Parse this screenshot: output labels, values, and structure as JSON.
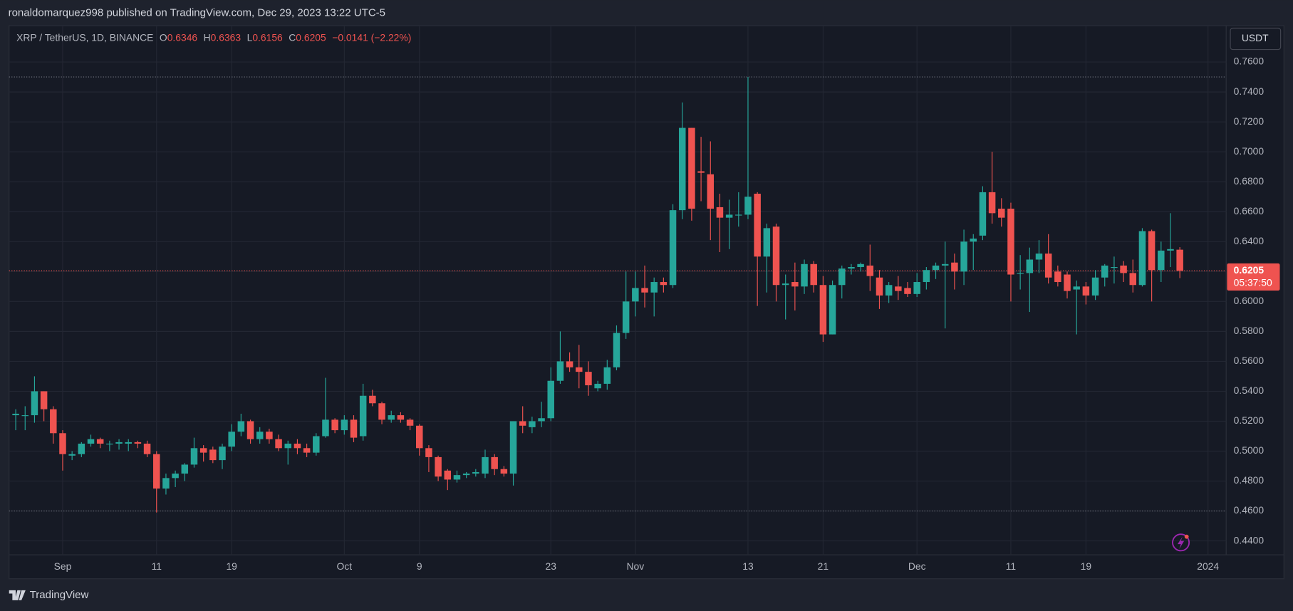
{
  "header": "ronaldomarquez998 published on TradingView.com, Dec 29, 2023 13:22 UTC-5",
  "footer": "TradingView",
  "chart_data": {
    "type": "candlestick",
    "title": "XRP / TetherUS, 1D, BINANCE",
    "ohlc_labels": [
      "O",
      "H",
      "L",
      "C"
    ],
    "change": {
      "value": -0.0141,
      "label": "−0.0141"
    },
    "change_pct": {
      "value": -2.22,
      "label": "(−2.22%)"
    },
    "currency": "USDT",
    "countdown": "05:37:50",
    "up_color": "#26a69a",
    "down_color": "#ef5350",
    "grid": true,
    "horizontal_lines": [
      0.75,
      0.46
    ],
    "xlim": [
      "2023-08-26",
      "2024-01-03"
    ],
    "ylim": [
      0.4307,
      0.7843
    ],
    "xticks": [
      {
        "value": "2023-09-01",
        "label": "Sep"
      },
      {
        "value": "2023-09-11",
        "label": "11"
      },
      {
        "value": "2023-09-19",
        "label": "19"
      },
      {
        "value": "2023-10-01",
        "label": "Oct"
      },
      {
        "value": "2023-10-09",
        "label": "9"
      },
      {
        "value": "2023-10-23",
        "label": "23"
      },
      {
        "value": "2023-11-01",
        "label": "Nov"
      },
      {
        "value": "2023-11-13",
        "label": "13"
      },
      {
        "value": "2023-11-21",
        "label": "21"
      },
      {
        "value": "2023-12-01",
        "label": "Dec"
      },
      {
        "value": "2023-12-11",
        "label": "11"
      },
      {
        "value": "2023-12-19",
        "label": "19"
      },
      {
        "value": "2024-01-01",
        "label": "2024"
      }
    ],
    "yticks": [
      {
        "value": 0.44,
        "label": "0.4400"
      },
      {
        "value": 0.46,
        "label": "0.4600"
      },
      {
        "value": 0.48,
        "label": "0.4800"
      },
      {
        "value": 0.5,
        "label": "0.5000"
      },
      {
        "value": 0.52,
        "label": "0.5200"
      },
      {
        "value": 0.54,
        "label": "0.5400"
      },
      {
        "value": 0.56,
        "label": "0.5600"
      },
      {
        "value": 0.58,
        "label": "0.5800"
      },
      {
        "value": 0.6,
        "label": "0.6000"
      },
      {
        "value": 0.62,
        "label": "0.6200"
      },
      {
        "value": 0.64,
        "label": "0.6400"
      },
      {
        "value": 0.66,
        "label": "0.6600"
      },
      {
        "value": 0.68,
        "label": "0.6800"
      },
      {
        "value": 0.7,
        "label": "0.7000"
      },
      {
        "value": 0.72,
        "label": "0.7200"
      },
      {
        "value": 0.74,
        "label": "0.7400"
      },
      {
        "value": 0.76,
        "label": "0.7600"
      }
    ],
    "x": [
      "2023-08-27",
      "2023-08-28",
      "2023-08-29",
      "2023-08-30",
      "2023-08-31",
      "2023-09-01",
      "2023-09-02",
      "2023-09-03",
      "2023-09-04",
      "2023-09-05",
      "2023-09-06",
      "2023-09-07",
      "2023-09-08",
      "2023-09-09",
      "2023-09-10",
      "2023-09-11",
      "2023-09-12",
      "2023-09-13",
      "2023-09-14",
      "2023-09-15",
      "2023-09-16",
      "2023-09-17",
      "2023-09-18",
      "2023-09-19",
      "2023-09-20",
      "2023-09-21",
      "2023-09-22",
      "2023-09-23",
      "2023-09-24",
      "2023-09-25",
      "2023-09-26",
      "2023-09-27",
      "2023-09-28",
      "2023-09-29",
      "2023-09-30",
      "2023-10-01",
      "2023-10-02",
      "2023-10-03",
      "2023-10-04",
      "2023-10-05",
      "2023-10-06",
      "2023-10-07",
      "2023-10-08",
      "2023-10-09",
      "2023-10-10",
      "2023-10-11",
      "2023-10-12",
      "2023-10-13",
      "2023-10-14",
      "2023-10-15",
      "2023-10-16",
      "2023-10-17",
      "2023-10-18",
      "2023-10-19",
      "2023-10-20",
      "2023-10-21",
      "2023-10-22",
      "2023-10-23",
      "2023-10-24",
      "2023-10-25",
      "2023-10-26",
      "2023-10-27",
      "2023-10-28",
      "2023-10-29",
      "2023-10-30",
      "2023-10-31",
      "2023-11-01",
      "2023-11-02",
      "2023-11-03",
      "2023-11-04",
      "2023-11-05",
      "2023-11-06",
      "2023-11-07",
      "2023-11-08",
      "2023-11-09",
      "2023-11-10",
      "2023-11-11",
      "2023-11-12",
      "2023-11-13",
      "2023-11-14",
      "2023-11-15",
      "2023-11-16",
      "2023-11-17",
      "2023-11-18",
      "2023-11-19",
      "2023-11-20",
      "2023-11-21",
      "2023-11-22",
      "2023-11-23",
      "2023-11-24",
      "2023-11-25",
      "2023-11-26",
      "2023-11-27",
      "2023-11-28",
      "2023-11-29",
      "2023-11-30",
      "2023-12-01",
      "2023-12-02",
      "2023-12-03",
      "2023-12-04",
      "2023-12-05",
      "2023-12-06",
      "2023-12-07",
      "2023-12-08",
      "2023-12-09",
      "2023-12-10",
      "2023-12-11",
      "2023-12-12",
      "2023-12-13",
      "2023-12-14",
      "2023-12-15",
      "2023-12-16",
      "2023-12-17",
      "2023-12-18",
      "2023-12-19",
      "2023-12-20",
      "2023-12-21",
      "2023-12-22",
      "2023-12-23",
      "2023-12-24",
      "2023-12-25",
      "2023-12-26",
      "2023-12-27",
      "2023-12-28",
      "2023-12-29"
    ],
    "open": [
      0.524,
      0.524,
      0.524,
      0.54,
      0.528,
      0.512,
      0.497,
      0.498,
      0.505,
      0.508,
      0.505,
      0.505,
      0.505,
      0.506,
      0.505,
      0.498,
      0.475,
      0.482,
      0.485,
      0.491,
      0.502,
      0.501,
      0.494,
      0.503,
      0.513,
      0.52,
      0.508,
      0.513,
      0.508,
      0.502,
      0.505,
      0.502,
      0.499,
      0.51,
      0.521,
      0.514,
      0.521,
      0.51,
      0.537,
      0.532,
      0.521,
      0.524,
      0.521,
      0.517,
      0.502,
      0.496,
      0.487,
      0.481,
      0.484,
      0.485,
      0.485,
      0.496,
      0.488,
      0.485,
      0.52,
      0.516,
      0.52,
      0.522,
      0.547,
      0.56,
      0.556,
      0.553,
      0.542,
      0.545,
      0.556,
      0.579,
      0.6,
      0.609,
      0.606,
      0.613,
      0.611,
      0.661,
      0.716,
      0.687,
      0.685,
      0.663,
      0.656,
      0.658,
      0.658,
      0.672,
      0.63,
      0.65,
      0.611,
      0.613,
      0.61,
      0.625,
      0.611,
      0.578,
      0.611,
      0.622,
      0.623,
      0.624,
      0.616,
      0.604,
      0.61,
      0.609,
      0.605,
      0.613,
      0.621,
      0.624,
      0.626,
      0.62,
      0.64,
      0.644,
      0.673,
      0.662,
      0.662,
      0.619,
      0.619,
      0.628,
      0.632,
      0.62,
      0.618,
      0.608,
      0.61,
      0.604,
      0.616,
      0.623,
      0.624,
      0.619,
      0.611,
      0.647,
      0.621,
      0.634,
      0.6346
    ],
    "high": [
      0.528,
      0.53,
      0.55,
      0.54,
      0.53,
      0.514,
      0.5,
      0.506,
      0.511,
      0.509,
      0.507,
      0.508,
      0.508,
      0.507,
      0.507,
      0.5,
      0.485,
      0.487,
      0.492,
      0.509,
      0.504,
      0.503,
      0.505,
      0.518,
      0.525,
      0.521,
      0.516,
      0.515,
      0.511,
      0.507,
      0.508,
      0.505,
      0.512,
      0.549,
      0.522,
      0.524,
      0.524,
      0.545,
      0.541,
      0.533,
      0.527,
      0.526,
      0.522,
      0.518,
      0.504,
      0.497,
      0.488,
      0.487,
      0.486,
      0.488,
      0.501,
      0.498,
      0.49,
      0.52,
      0.53,
      0.523,
      0.533,
      0.556,
      0.58,
      0.566,
      0.571,
      0.56,
      0.547,
      0.561,
      0.584,
      0.62,
      0.62,
      0.624,
      0.616,
      0.616,
      0.665,
      0.733,
      0.716,
      0.71,
      0.707,
      0.672,
      0.668,
      0.673,
      0.75,
      0.673,
      0.652,
      0.652,
      0.618,
      0.626,
      0.628,
      0.627,
      0.617,
      0.614,
      0.624,
      0.625,
      0.626,
      0.638,
      0.621,
      0.613,
      0.617,
      0.613,
      0.619,
      0.623,
      0.626,
      0.64,
      0.632,
      0.648,
      0.645,
      0.677,
      0.7,
      0.669,
      0.666,
      0.631,
      0.636,
      0.641,
      0.645,
      0.624,
      0.62,
      0.614,
      0.613,
      0.621,
      0.625,
      0.63,
      0.627,
      0.628,
      0.649,
      0.648,
      0.64,
      0.659,
      0.6363
    ],
    "low": [
      0.514,
      0.514,
      0.519,
      0.52,
      0.505,
      0.487,
      0.494,
      0.496,
      0.503,
      0.502,
      0.5,
      0.501,
      0.5,
      0.502,
      0.496,
      0.459,
      0.471,
      0.476,
      0.48,
      0.489,
      0.493,
      0.492,
      0.488,
      0.5,
      0.51,
      0.505,
      0.505,
      0.505,
      0.5,
      0.491,
      0.498,
      0.496,
      0.497,
      0.509,
      0.512,
      0.511,
      0.506,
      0.507,
      0.53,
      0.518,
      0.519,
      0.519,
      0.514,
      0.497,
      0.486,
      0.48,
      0.474,
      0.479,
      0.482,
      0.483,
      0.482,
      0.484,
      0.483,
      0.477,
      0.512,
      0.512,
      0.516,
      0.52,
      0.545,
      0.553,
      0.542,
      0.537,
      0.54,
      0.541,
      0.554,
      0.575,
      0.59,
      0.596,
      0.59,
      0.606,
      0.609,
      0.655,
      0.654,
      0.667,
      0.641,
      0.633,
      0.635,
      0.65,
      0.655,
      0.597,
      0.606,
      0.6,
      0.588,
      0.594,
      0.605,
      0.606,
      0.573,
      0.578,
      0.602,
      0.618,
      0.62,
      0.607,
      0.595,
      0.599,
      0.601,
      0.603,
      0.603,
      0.608,
      0.615,
      0.582,
      0.608,
      0.611,
      0.621,
      0.641,
      0.652,
      0.65,
      0.6,
      0.608,
      0.593,
      0.619,
      0.612,
      0.61,
      0.602,
      0.578,
      0.598,
      0.601,
      0.61,
      0.612,
      0.613,
      0.606,
      0.61,
      0.6,
      0.613,
      0.623,
      0.6156
    ],
    "close": [
      0.525,
      0.524,
      0.54,
      0.528,
      0.512,
      0.498,
      0.498,
      0.505,
      0.508,
      0.505,
      0.505,
      0.506,
      0.506,
      0.505,
      0.498,
      0.475,
      0.482,
      0.485,
      0.491,
      0.502,
      0.499,
      0.494,
      0.503,
      0.513,
      0.52,
      0.508,
      0.513,
      0.508,
      0.502,
      0.505,
      0.502,
      0.499,
      0.51,
      0.521,
      0.514,
      0.521,
      0.509,
      0.537,
      0.532,
      0.521,
      0.524,
      0.521,
      0.517,
      0.502,
      0.496,
      0.483,
      0.481,
      0.484,
      0.485,
      0.486,
      0.496,
      0.488,
      0.485,
      0.52,
      0.517,
      0.52,
      0.522,
      0.547,
      0.56,
      0.556,
      0.553,
      0.544,
      0.545,
      0.556,
      0.579,
      0.6,
      0.609,
      0.606,
      0.613,
      0.611,
      0.661,
      0.716,
      0.662,
      0.686,
      0.662,
      0.656,
      0.658,
      0.658,
      0.67,
      0.63,
      0.649,
      0.611,
      0.612,
      0.61,
      0.625,
      0.611,
      0.578,
      0.611,
      0.622,
      0.623,
      0.625,
      0.617,
      0.604,
      0.611,
      0.607,
      0.605,
      0.613,
      0.621,
      0.624,
      0.625,
      0.62,
      0.64,
      0.642,
      0.673,
      0.659,
      0.656,
      0.618,
      0.619,
      0.628,
      0.632,
      0.616,
      0.613,
      0.607,
      0.61,
      0.604,
      0.616,
      0.624,
      0.623,
      0.619,
      0.611,
      0.647,
      0.621,
      0.634,
      0.635,
      0.6205
    ]
  }
}
